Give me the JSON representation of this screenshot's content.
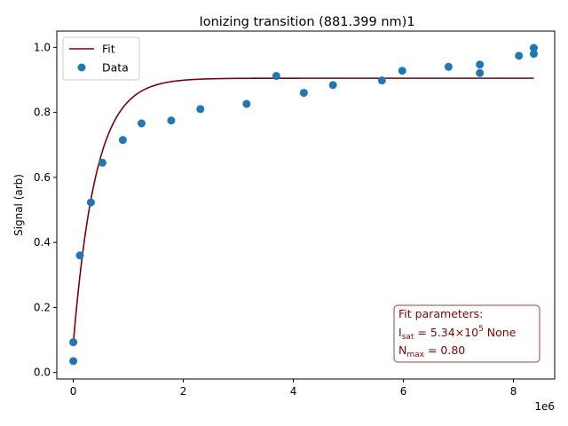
{
  "chart_data": {
    "type": "scatter",
    "title": "Ionizing transition (881.399 nm)1",
    "xlabel": "",
    "ylabel": "Signal (arb)",
    "x_offset_label": "1e6",
    "xlim": [
      -300000,
      8750000
    ],
    "ylim": [
      -0.02,
      1.05
    ],
    "x_ticks": [
      0,
      2000000,
      4000000,
      6000000,
      8000000
    ],
    "x_tick_labels": [
      "0",
      "2",
      "4",
      "6",
      "8"
    ],
    "y_ticks": [
      0.0,
      0.2,
      0.4,
      0.6,
      0.8,
      1.0
    ],
    "y_tick_labels": [
      "0.0",
      "0.2",
      "0.4",
      "0.6",
      "0.8",
      "1.0"
    ],
    "grid": false,
    "legend": {
      "position": "top-left",
      "entries": [
        {
          "label": "Fit",
          "type": "line",
          "color": "#800000"
        },
        {
          "label": "Data",
          "type": "marker",
          "color": "#1f77b4"
        }
      ]
    },
    "series": [
      {
        "name": "Data",
        "type": "scatter",
        "color": "#1f77b4",
        "points": [
          {
            "x": 0,
            "y": 0.035
          },
          {
            "x": 0,
            "y": 0.093
          },
          {
            "x": 120000,
            "y": 0.36
          },
          {
            "x": 320000,
            "y": 0.523
          },
          {
            "x": 530000,
            "y": 0.645
          },
          {
            "x": 900000,
            "y": 0.715
          },
          {
            "x": 1240000,
            "y": 0.766
          },
          {
            "x": 1780000,
            "y": 0.775
          },
          {
            "x": 2310000,
            "y": 0.81
          },
          {
            "x": 3150000,
            "y": 0.826
          },
          {
            "x": 3690000,
            "y": 0.912
          },
          {
            "x": 4190000,
            "y": 0.86
          },
          {
            "x": 4720000,
            "y": 0.884
          },
          {
            "x": 5610000,
            "y": 0.898
          },
          {
            "x": 5980000,
            "y": 0.928
          },
          {
            "x": 6820000,
            "y": 0.94
          },
          {
            "x": 7390000,
            "y": 0.947
          },
          {
            "x": 7390000,
            "y": 0.921
          },
          {
            "x": 8100000,
            "y": 0.974
          },
          {
            "x": 8370000,
            "y": 0.998
          },
          {
            "x": 8370000,
            "y": 0.98
          }
        ]
      },
      {
        "name": "Fit",
        "type": "line",
        "color": "#800000",
        "model": {
          "formula": "y = y0 + (ymax - y0) * (1 - exp(-x / tau))",
          "y0": 0.09,
          "ymax": 0.905,
          "tau": 410000,
          "x_start": 0,
          "x_end": 8370000
        }
      }
    ],
    "annotation": {
      "position": "bottom-right",
      "color": "#8b0000",
      "heading": "Fit parameters:",
      "line1_base": "I",
      "line1_sub": "sat",
      "line1_value": " = 5.34×10",
      "line1_exp": "5",
      "line1_suffix": " None",
      "line2_base": "N",
      "line2_sub": "max",
      "line2_value": " = 0.80"
    }
  }
}
